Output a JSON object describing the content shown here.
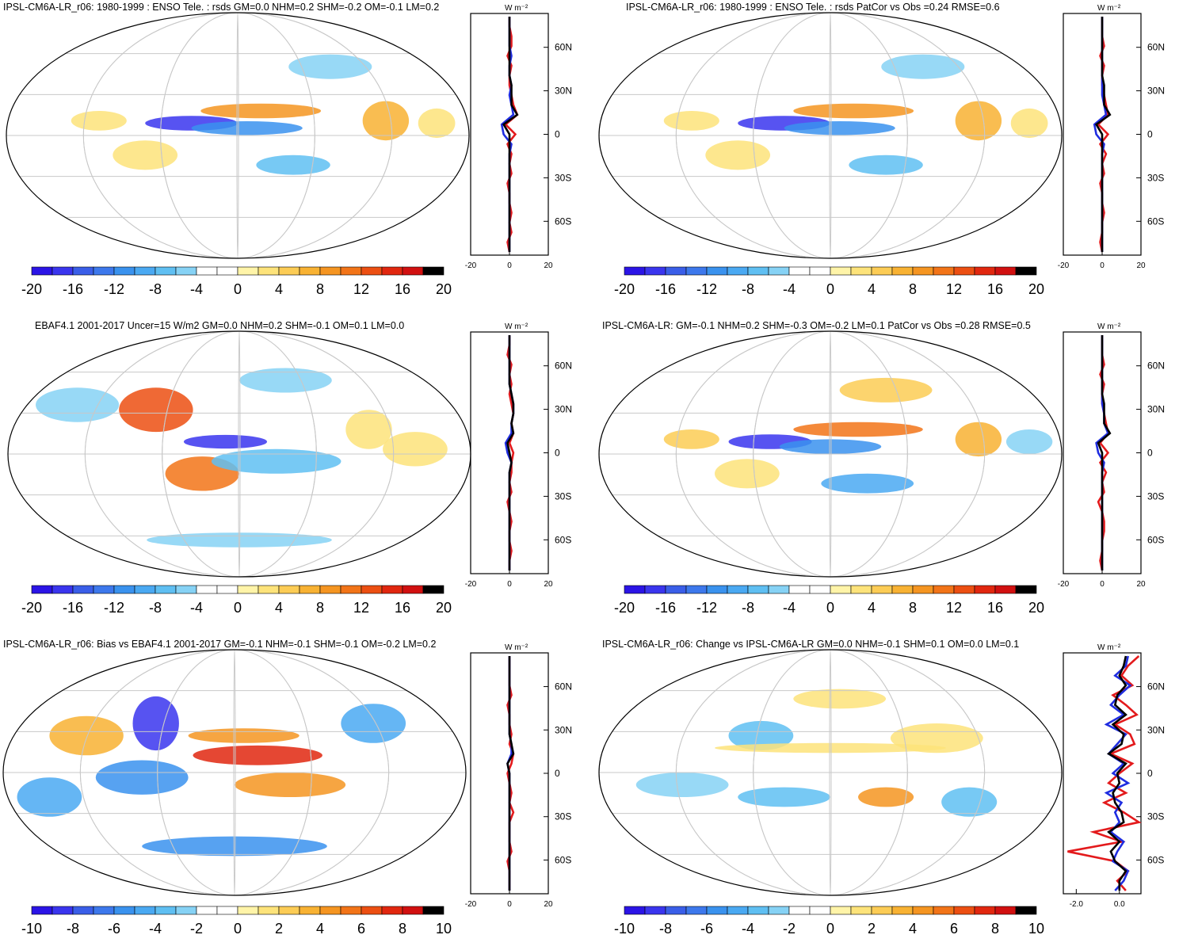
{
  "colors": {
    "neg": [
      "#2b14e6",
      "#3a35ee",
      "#3a5ee8",
      "#3d78ec",
      "#3a92ee",
      "#4aa9f2",
      "#5fbff2",
      "#86d2f5"
    ],
    "zero": "#ffffff",
    "pos": [
      "#fff4a8",
      "#fde37a",
      "#fccc55",
      "#f8b233",
      "#f59521",
      "#f27418",
      "#ec4f12",
      "#e1270f",
      "#d11010"
    ],
    "obs_line": "#e31a1c",
    "model_line": "#1f2de0",
    "ref_line": "#000000"
  },
  "zonal_axis_unit": "W m⁻²",
  "chart_data": [
    {
      "type": "heatmap",
      "title": "IPSL-CM6A-LR_r06: 1980-1999 : ENSO Tele. : rsds GM=0.0 NHM=0.2 SHM=-0.2 OM=-0.1 LM=0.2",
      "colorbar_ticks": [
        "-20",
        "-16",
        "-12",
        "-8",
        "-4",
        "0",
        "4",
        "8",
        "12",
        "16",
        "20"
      ],
      "lat_ticks": [
        "60N",
        "30N",
        "0",
        "30S",
        "60S"
      ],
      "zonal_xticks": [
        "-20",
        "0",
        "20"
      ],
      "zonal_xrange": [
        -20,
        20
      ],
      "zonal_series": [
        {
          "name": "obs",
          "values": [
            0,
            0,
            1,
            1,
            -1,
            1,
            0,
            0,
            1,
            2,
            4,
            -2,
            3,
            -1,
            1,
            0,
            1,
            -1,
            0,
            0,
            1,
            0,
            1,
            -1,
            0
          ]
        },
        {
          "name": "model",
          "values": [
            0,
            0,
            0,
            0,
            1,
            0,
            0,
            1,
            0,
            1,
            2,
            -4,
            -3,
            1,
            0,
            0,
            0,
            0,
            0,
            0,
            0,
            0,
            0,
            0,
            0
          ]
        },
        {
          "name": "ref",
          "values": [
            0,
            0,
            0,
            0,
            0,
            0,
            0,
            1,
            1,
            1,
            4,
            -3,
            0,
            0,
            0,
            0,
            0,
            0,
            0,
            0,
            0,
            0,
            0,
            0,
            0
          ]
        }
      ]
    },
    {
      "type": "heatmap",
      "title": "IPSL-CM6A-LR_r06: 1980-1999 : ENSO Tele. : rsds PatCor vs Obs =0.24 RMSE=0.6",
      "colorbar_ticks": [
        "-20",
        "-16",
        "-12",
        "-8",
        "-4",
        "0",
        "4",
        "8",
        "12",
        "16",
        "20"
      ],
      "lat_ticks": [
        "60N",
        "30N",
        "0",
        "30S",
        "60S"
      ],
      "zonal_xticks": [
        "-20",
        "0",
        "20"
      ],
      "zonal_xrange": [
        -20,
        20
      ],
      "zonal_series": [
        {
          "name": "obs",
          "values": [
            0,
            0,
            0,
            1,
            -1,
            1,
            0,
            0,
            1,
            2,
            3,
            -2,
            3,
            -1,
            2,
            0,
            1,
            -1,
            0,
            0,
            1,
            0,
            0,
            -1,
            0
          ]
        },
        {
          "name": "model",
          "values": [
            0,
            0,
            0,
            0,
            0,
            0,
            0,
            0,
            0,
            1,
            2,
            -4,
            -3,
            1,
            0,
            0,
            0,
            0,
            0,
            0,
            0,
            0,
            0,
            0,
            0
          ]
        },
        {
          "name": "ref",
          "values": [
            0,
            0,
            0,
            0,
            0,
            0,
            0,
            1,
            1,
            1,
            4,
            -3,
            0,
            0,
            0,
            0,
            0,
            0,
            0,
            0,
            0,
            0,
            0,
            0,
            0
          ]
        }
      ]
    },
    {
      "type": "heatmap",
      "title": "EBAF4.1 2001-2017 Uncer=15 W/m2 GM=0.0 NHM=0.2 SHM=-0.1 OM=0.1 LM=0.0",
      "colorbar_ticks": [
        "-20",
        "-16",
        "-12",
        "-8",
        "-4",
        "0",
        "4",
        "8",
        "12",
        "16",
        "20"
      ],
      "lat_ticks": [
        "60N",
        "30N",
        "0",
        "30S",
        "60S"
      ],
      "zonal_xticks": [
        "-20",
        "0",
        "20"
      ],
      "zonal_xrange": [
        -20,
        20
      ],
      "zonal_series": [
        {
          "name": "obs",
          "values": [
            0,
            0,
            -1,
            1,
            0,
            1,
            0,
            1,
            2,
            1,
            2,
            0,
            2,
            1,
            1,
            0,
            1,
            -1,
            0,
            1,
            0,
            0,
            1,
            0,
            0
          ]
        },
        {
          "name": "model",
          "values": [
            0,
            0,
            0,
            0,
            0,
            0,
            1,
            2,
            2,
            1,
            1,
            -2,
            -1,
            1,
            0,
            0,
            0,
            0,
            0,
            0,
            0,
            0,
            0,
            0,
            0
          ]
        },
        {
          "name": "ref",
          "values": [
            0,
            0,
            0,
            0,
            0,
            0,
            1,
            2,
            2,
            1,
            2,
            -1,
            0,
            1,
            0,
            0,
            0,
            0,
            0,
            0,
            0,
            0,
            0,
            0,
            0
          ]
        }
      ]
    },
    {
      "type": "heatmap",
      "title": "IPSL-CM6A-LR: GM=-0.1 NHM=0.2 SHM=-0.3 OM=-0.2 LM=0.1 PatCor vs Obs =0.28 RMSE=0.5",
      "colorbar_ticks": [
        "-20",
        "-16",
        "-12",
        "-8",
        "-4",
        "0",
        "4",
        "8",
        "12",
        "16",
        "20"
      ],
      "lat_ticks": [
        "60N",
        "30N",
        "0",
        "30S",
        "60S"
      ],
      "zonal_xticks": [
        "-20",
        "0",
        "20"
      ],
      "zonal_xrange": [
        -20,
        20
      ],
      "zonal_series": [
        {
          "name": "obs",
          "values": [
            0,
            0,
            0,
            1,
            -1,
            1,
            0,
            0,
            1,
            2,
            3,
            -1,
            3,
            -1,
            2,
            0,
            1,
            -2,
            0,
            1,
            1,
            0,
            0,
            -1,
            0
          ]
        },
        {
          "name": "model",
          "values": [
            0,
            0,
            0,
            0,
            0,
            0,
            0,
            0,
            1,
            1,
            3,
            -3,
            -2,
            1,
            0,
            0,
            0,
            0,
            0,
            0,
            0,
            0,
            0,
            0,
            0
          ]
        },
        {
          "name": "ref",
          "values": [
            0,
            0,
            0,
            0,
            0,
            0,
            0,
            1,
            1,
            1,
            4,
            -2,
            0,
            0,
            0,
            0,
            0,
            0,
            0,
            0,
            0,
            0,
            0,
            0,
            0
          ]
        }
      ]
    },
    {
      "type": "heatmap",
      "title": "IPSL-CM6A-LR_r06: Bias vs EBAF4.1 2001-2017 GM=-0.1 NHM=-0.1 SHM=-0.1 OM=-0.2 LM=0.2",
      "colorbar_ticks": [
        "-10",
        "-8",
        "-6",
        "-4",
        "-2",
        "0",
        "2",
        "4",
        "6",
        "8",
        "10"
      ],
      "lat_ticks": [
        "60N",
        "30N",
        "0",
        "30S",
        "60S"
      ],
      "zonal_xticks": [
        "-20",
        "0",
        "20"
      ],
      "zonal_xrange": [
        -20,
        20
      ],
      "zonal_series": [
        {
          "name": "obs",
          "values": [
            0,
            0,
            0,
            0,
            1,
            -1,
            0,
            0,
            1,
            0,
            2,
            1,
            -1,
            0,
            1,
            0,
            2,
            0,
            0,
            0,
            1,
            -1,
            0,
            0,
            0
          ]
        },
        {
          "name": "model",
          "values": [
            0,
            0,
            0,
            0,
            0,
            0,
            0,
            0,
            0,
            1,
            1,
            -1,
            0,
            0,
            0,
            0,
            0,
            0,
            0,
            0,
            0,
            0,
            0,
            0,
            0
          ]
        },
        {
          "name": "ref",
          "values": [
            0,
            0,
            0,
            0,
            0,
            0,
            0,
            0,
            0,
            1,
            2,
            -1,
            0,
            0,
            0,
            0,
            0,
            0,
            0,
            0,
            0,
            0,
            0,
            0,
            0
          ]
        }
      ]
    },
    {
      "type": "heatmap",
      "title": "IPSL-CM6A-LR_r06: Change vs IPSL-CM6A-LR GM=0.0 NHM=-0.1 SHM=0.1 OM=0.0 LM=0.1",
      "colorbar_ticks": [
        "-10",
        "-8",
        "-6",
        "-4",
        "-2",
        "0",
        "2",
        "4",
        "6",
        "8",
        "10"
      ],
      "lat_ticks": [
        "60N",
        "30N",
        "0",
        "30S",
        "60S"
      ],
      "zonal_xticks": [
        "-2.0",
        "0.0"
      ],
      "zonal_xrange": [
        -2.6,
        1.0
      ],
      "zonal_series": [
        {
          "name": "obs",
          "values": [
            0.9,
            0.4,
            0.1,
            0.6,
            -0.3,
            0.3,
            0.8,
            -0.2,
            0.5,
            0.7,
            -0.4,
            0.6,
            0.0,
            -0.5,
            0.3,
            -0.7,
            0.2,
            0.9,
            -1.2,
            0.1,
            -2.4,
            -0.2,
            0.4,
            -0.1,
            0.3
          ]
        },
        {
          "name": "model",
          "values": [
            0.4,
            0.3,
            -0.2,
            0.5,
            0.0,
            -0.4,
            0.2,
            -0.6,
            0.3,
            -0.1,
            -0.5,
            0.2,
            -0.3,
            0.4,
            -0.6,
            0.1,
            -0.2,
            0.0,
            -0.4,
            0.2,
            -0.1,
            -0.3,
            0.4,
            0.2,
            -0.2
          ]
        },
        {
          "name": "ref",
          "values": [
            0.3,
            0.2,
            0.0,
            0.3,
            -0.1,
            -0.2,
            0.3,
            -0.3,
            0.2,
            0.1,
            -0.5,
            0.3,
            -0.1,
            0.0,
            -0.3,
            -0.2,
            0.1,
            0.2,
            -0.5,
            0.0,
            -0.4,
            -0.2,
            0.3,
            0.0,
            0.0
          ]
        }
      ]
    }
  ]
}
